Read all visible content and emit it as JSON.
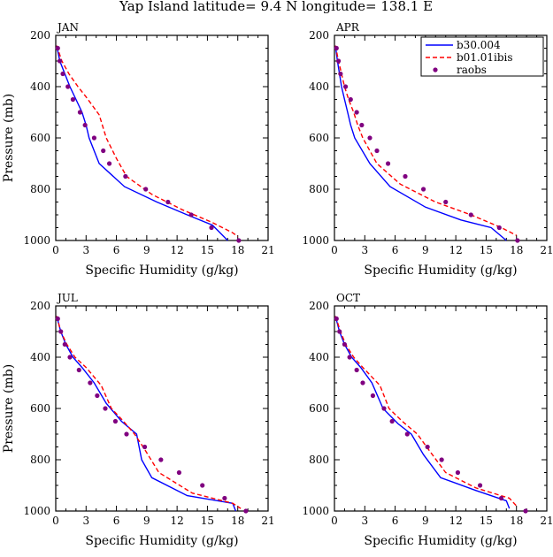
{
  "page_title": "Yap Island  latitude= 9.4 N longitude= 138.1 E",
  "legend": {
    "entries": [
      {
        "label": "b30.004",
        "color": "#0000ff",
        "style": "solid"
      },
      {
        "label": "b01.01ibis",
        "color": "#ff0000",
        "style": "dashed"
      },
      {
        "label": "raobs",
        "color": "#800080",
        "style": "dots"
      }
    ]
  },
  "chart_data": [
    {
      "type": "line",
      "panel_label": "JAN",
      "xlabel": "Specific Humidity (g/kg)",
      "ylabel": "Pressure (mb)",
      "xlim": [
        0,
        21
      ],
      "ylim": [
        1000,
        200
      ],
      "x_ticks": [
        0,
        3,
        6,
        9,
        12,
        15,
        18,
        21
      ],
      "y_ticks": [
        200,
        400,
        600,
        800,
        1000
      ],
      "grid": false,
      "series": [
        {
          "name": "b30.004",
          "style": "solid",
          "color": "#0000ff",
          "points": [
            [
              0.1,
              240
            ],
            [
              0.4,
              300
            ],
            [
              0.9,
              350
            ],
            [
              1.4,
              400
            ],
            [
              2.0,
              450
            ],
            [
              2.6,
              500
            ],
            [
              3.0,
              550
            ],
            [
              3.3,
              600
            ],
            [
              4.3,
              700
            ],
            [
              6.8,
              790
            ],
            [
              10.0,
              850
            ],
            [
              13.0,
              900
            ],
            [
              15.5,
              940
            ],
            [
              17.0,
              1000
            ]
          ]
        },
        {
          "name": "b01.01ibis",
          "style": "dashed",
          "color": "#ff0000",
          "points": [
            [
              0.1,
              240
            ],
            [
              0.6,
              300
            ],
            [
              1.3,
              350
            ],
            [
              2.2,
              400
            ],
            [
              3.0,
              440
            ],
            [
              4.3,
              510
            ],
            [
              5.0,
              600
            ],
            [
              6.0,
              680
            ],
            [
              7.0,
              750
            ],
            [
              9.5,
              820
            ],
            [
              12.5,
              880
            ],
            [
              15.5,
              930
            ],
            [
              17.5,
              970
            ],
            [
              18.0,
              985
            ]
          ]
        },
        {
          "name": "raobs",
          "style": "dots",
          "color": "#800080",
          "points": [
            [
              0.2,
              250
            ],
            [
              0.4,
              300
            ],
            [
              0.7,
              350
            ],
            [
              1.2,
              400
            ],
            [
              1.7,
              450
            ],
            [
              2.4,
              500
            ],
            [
              2.9,
              550
            ],
            [
              3.8,
              600
            ],
            [
              4.7,
              650
            ],
            [
              5.3,
              700
            ],
            [
              6.9,
              750
            ],
            [
              8.9,
              800
            ],
            [
              11.1,
              850
            ],
            [
              13.4,
              900
            ],
            [
              15.4,
              950
            ],
            [
              18.1,
              1000
            ]
          ]
        }
      ]
    },
    {
      "type": "line",
      "panel_label": "APR",
      "xlabel": "Specific Humidity (g/kg)",
      "ylabel": "",
      "xlim": [
        0,
        21
      ],
      "ylim": [
        1000,
        200
      ],
      "x_ticks": [
        0,
        3,
        6,
        9,
        12,
        15,
        18,
        21
      ],
      "y_ticks": [
        200,
        400,
        600,
        800,
        1000
      ],
      "grid": false,
      "series": [
        {
          "name": "b30.004",
          "style": "solid",
          "color": "#0000ff",
          "points": [
            [
              0.1,
              240
            ],
            [
              0.3,
              300
            ],
            [
              0.5,
              350
            ],
            [
              0.7,
              400
            ],
            [
              1.0,
              450
            ],
            [
              1.3,
              500
            ],
            [
              1.6,
              550
            ],
            [
              2.0,
              600
            ],
            [
              3.5,
              700
            ],
            [
              5.5,
              790
            ],
            [
              9.0,
              870
            ],
            [
              12.5,
              920
            ],
            [
              15.5,
              950
            ],
            [
              17.0,
              1000
            ]
          ]
        },
        {
          "name": "b01.01ibis",
          "style": "dashed",
          "color": "#ff0000",
          "points": [
            [
              0.1,
              240
            ],
            [
              0.4,
              300
            ],
            [
              0.7,
              350
            ],
            [
              1.0,
              400
            ],
            [
              1.4,
              450
            ],
            [
              1.9,
              500
            ],
            [
              2.3,
              550
            ],
            [
              2.8,
              600
            ],
            [
              4.2,
              700
            ],
            [
              6.5,
              780
            ],
            [
              10.0,
              850
            ],
            [
              13.5,
              900
            ],
            [
              16.5,
              950
            ],
            [
              18.0,
              980
            ]
          ]
        },
        {
          "name": "raobs",
          "style": "dots",
          "color": "#800080",
          "points": [
            [
              0.2,
              250
            ],
            [
              0.4,
              300
            ],
            [
              0.6,
              350
            ],
            [
              1.1,
              400
            ],
            [
              1.6,
              450
            ],
            [
              2.2,
              500
            ],
            [
              2.7,
              550
            ],
            [
              3.5,
              600
            ],
            [
              4.2,
              650
            ],
            [
              5.3,
              700
            ],
            [
              7.0,
              750
            ],
            [
              8.8,
              800
            ],
            [
              11.0,
              850
            ],
            [
              13.5,
              900
            ],
            [
              16.3,
              950
            ],
            [
              18.1,
              1000
            ]
          ]
        }
      ]
    },
    {
      "type": "line",
      "panel_label": "JUL",
      "xlabel": "Specific Humidity (g/kg)",
      "ylabel": "Pressure (mb)",
      "xlim": [
        0,
        21
      ],
      "ylim": [
        1000,
        200
      ],
      "x_ticks": [
        0,
        3,
        6,
        9,
        12,
        15,
        18,
        21
      ],
      "y_ticks": [
        200,
        400,
        600,
        800,
        1000
      ],
      "grid": false,
      "series": [
        {
          "name": "b30.004",
          "style": "solid",
          "color": "#0000ff",
          "points": [
            [
              0.1,
              240
            ],
            [
              0.5,
              300
            ],
            [
              1.0,
              350
            ],
            [
              1.7,
              400
            ],
            [
              2.6,
              440
            ],
            [
              3.8,
              500
            ],
            [
              5.0,
              580
            ],
            [
              6.5,
              650
            ],
            [
              8.0,
              700
            ],
            [
              8.5,
              800
            ],
            [
              9.5,
              870
            ],
            [
              13.0,
              940
            ],
            [
              17.5,
              970
            ],
            [
              17.8,
              1000
            ]
          ]
        },
        {
          "name": "b01.01ibis",
          "style": "dashed",
          "color": "#ff0000",
          "points": [
            [
              0.1,
              240
            ],
            [
              0.5,
              300
            ],
            [
              1.1,
              350
            ],
            [
              1.9,
              400
            ],
            [
              3.0,
              440
            ],
            [
              4.5,
              510
            ],
            [
              5.5,
              600
            ],
            [
              6.7,
              650
            ],
            [
              7.8,
              700
            ],
            [
              8.8,
              760
            ],
            [
              10.2,
              850
            ],
            [
              13.5,
              930
            ],
            [
              17.5,
              970
            ],
            [
              18.3,
              990
            ]
          ]
        },
        {
          "name": "raobs",
          "style": "dots",
          "color": "#800080",
          "points": [
            [
              0.2,
              250
            ],
            [
              0.5,
              300
            ],
            [
              0.9,
              350
            ],
            [
              1.4,
              400
            ],
            [
              2.3,
              450
            ],
            [
              3.4,
              500
            ],
            [
              4.1,
              550
            ],
            [
              4.9,
              600
            ],
            [
              5.9,
              650
            ],
            [
              7.0,
              700
            ],
            [
              8.8,
              750
            ],
            [
              10.4,
              800
            ],
            [
              12.2,
              850
            ],
            [
              14.5,
              900
            ],
            [
              16.7,
              950
            ],
            [
              18.8,
              1000
            ]
          ]
        }
      ]
    },
    {
      "type": "line",
      "panel_label": "OCT",
      "xlabel": "Specific Humidity (g/kg)",
      "ylabel": "",
      "xlim": [
        0,
        21
      ],
      "ylim": [
        1000,
        200
      ],
      "x_ticks": [
        0,
        3,
        6,
        9,
        12,
        15,
        18,
        21
      ],
      "y_ticks": [
        200,
        400,
        600,
        800,
        1000
      ],
      "grid": false,
      "series": [
        {
          "name": "b30.004",
          "style": "solid",
          "color": "#0000ff",
          "points": [
            [
              0.1,
              240
            ],
            [
              0.5,
              300
            ],
            [
              1.0,
              350
            ],
            [
              1.7,
              400
            ],
            [
              2.6,
              440
            ],
            [
              3.7,
              500
            ],
            [
              4.8,
              600
            ],
            [
              6.3,
              660
            ],
            [
              7.6,
              700
            ],
            [
              8.8,
              780
            ],
            [
              10.5,
              870
            ],
            [
              14.0,
              920
            ],
            [
              17.0,
              960
            ],
            [
              17.3,
              990
            ]
          ]
        },
        {
          "name": "b01.01ibis",
          "style": "dashed",
          "color": "#ff0000",
          "points": [
            [
              0.1,
              240
            ],
            [
              0.6,
              300
            ],
            [
              1.1,
              350
            ],
            [
              1.9,
              400
            ],
            [
              2.8,
              440
            ],
            [
              4.5,
              510
            ],
            [
              5.4,
              600
            ],
            [
              6.7,
              650
            ],
            [
              8.2,
              700
            ],
            [
              9.3,
              760
            ],
            [
              11.0,
              850
            ],
            [
              14.0,
              910
            ],
            [
              17.3,
              950
            ],
            [
              18.0,
              980
            ]
          ]
        },
        {
          "name": "raobs",
          "style": "dots",
          "color": "#800080",
          "points": [
            [
              0.2,
              250
            ],
            [
              0.5,
              300
            ],
            [
              1.0,
              350
            ],
            [
              1.5,
              400
            ],
            [
              2.2,
              450
            ],
            [
              2.8,
              500
            ],
            [
              3.8,
              550
            ],
            [
              4.9,
              600
            ],
            [
              5.7,
              650
            ],
            [
              7.2,
              700
            ],
            [
              9.2,
              750
            ],
            [
              10.6,
              800
            ],
            [
              12.2,
              850
            ],
            [
              14.4,
              900
            ],
            [
              16.5,
              950
            ],
            [
              18.9,
              1000
            ]
          ]
        }
      ]
    }
  ]
}
